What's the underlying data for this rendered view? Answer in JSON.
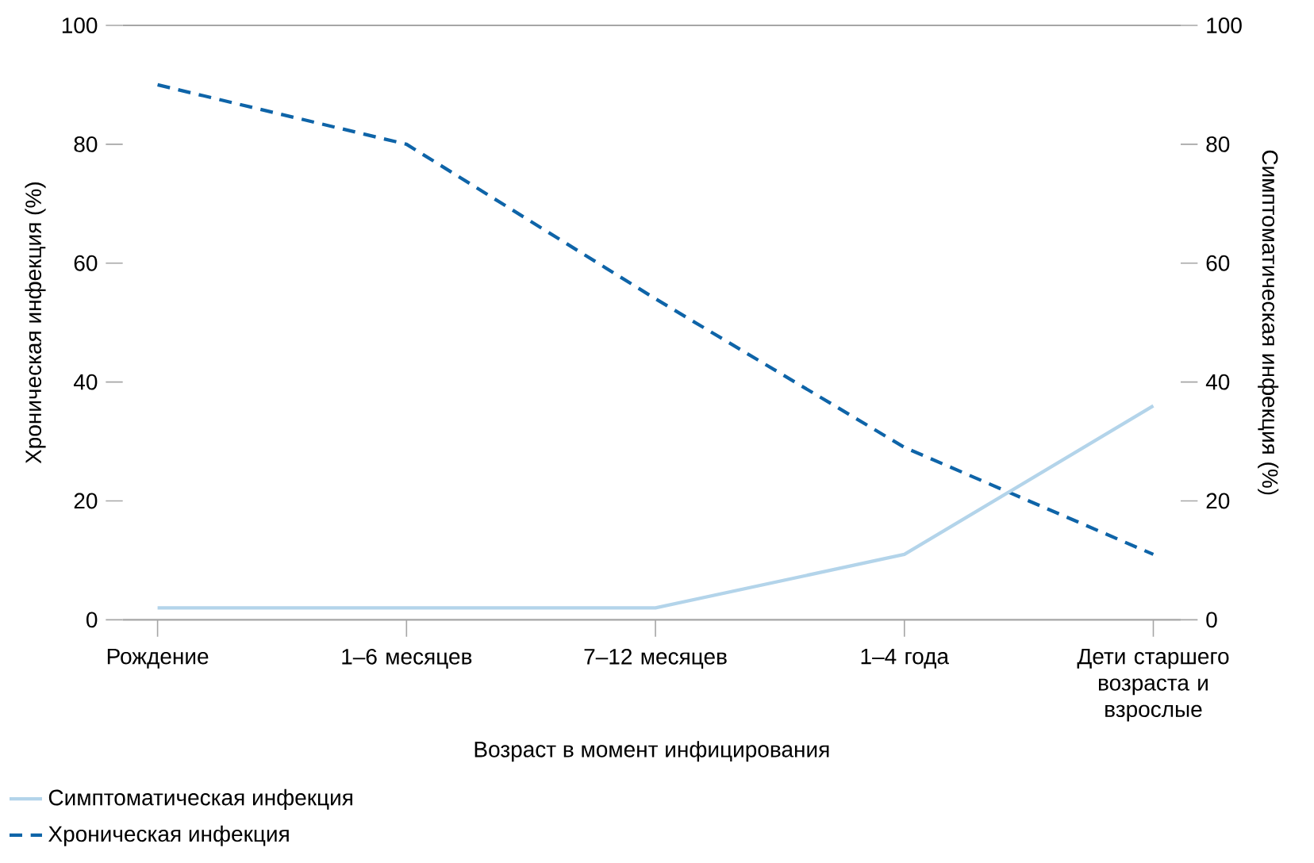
{
  "chart_data": {
    "type": "line",
    "categories": [
      "Рождение",
      "1–6 месяцев",
      "7–12 месяцев",
      "1–4 года",
      "Дети старшего возраста и взрослые"
    ],
    "series": [
      {
        "name": "Симптоматическая инфекция",
        "color": "#b3d4ea",
        "axis": "y2",
        "line_style": "solid",
        "values": [
          2,
          2,
          2,
          11,
          36
        ]
      },
      {
        "name": "Хроническая инфекция",
        "color": "#0e64a8",
        "axis": "y",
        "line_style": "dashed",
        "values": [
          90,
          80,
          54,
          29,
          11
        ]
      }
    ],
    "xlabel": "Возраст в момент инфицирования",
    "ylabel": "Хроническая инфекция (%)",
    "y2label": "Симптоматическая инфекция (%)",
    "ylim": [
      0,
      100
    ],
    "yticks": [
      0,
      20,
      40,
      60,
      80,
      100
    ],
    "y2lim": [
      0,
      100
    ],
    "y2ticks": [
      0,
      20,
      40,
      60,
      80,
      100
    ],
    "grid": false,
    "legend": "bottom left",
    "marker": "none"
  }
}
